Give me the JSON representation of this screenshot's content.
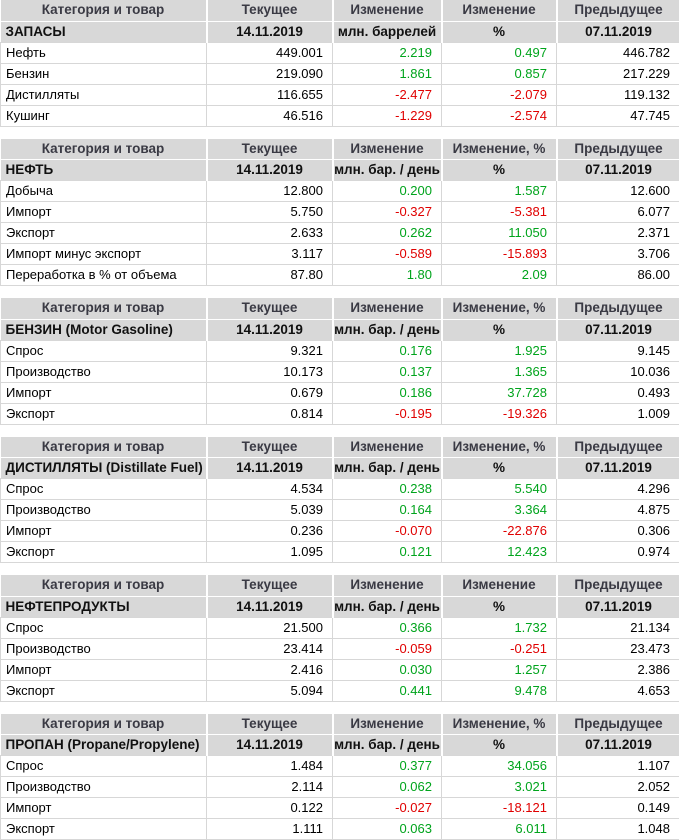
{
  "colors": {
    "positive": "#00a41c",
    "negative": "#e00000",
    "header_bg": "#d8d8d8",
    "header_text": "#3a3a44",
    "subheader_text": "#111111",
    "cell_border": "#d7d7d7",
    "body_text": "#000000",
    "page_bg": "#ffffff"
  },
  "dates": {
    "current": "14.11.2019",
    "previous": "07.11.2019"
  },
  "chart_data": [
    {
      "type": "table",
      "title": "ЗАПАСЫ",
      "unit": "млн. баррелей",
      "columns": [
        "Категория и товар",
        "Текущее",
        "Изменение",
        "Изменение",
        "Предыдущее"
      ],
      "subheader": [
        "ЗАПАСЫ",
        "14.11.2019",
        "млн. баррелей",
        "%",
        "07.11.2019"
      ],
      "rows": [
        [
          "Нефть",
          "449.001",
          "2.219",
          "0.497",
          "446.782"
        ],
        [
          "Бензин",
          "219.090",
          "1.861",
          "0.857",
          "217.229"
        ],
        [
          "Дистилляты",
          "116.655",
          "-2.477",
          "-2.079",
          "119.132"
        ],
        [
          "Кушинг",
          "46.516",
          "-1.229",
          "-2.574",
          "47.745"
        ]
      ]
    },
    {
      "type": "table",
      "title": "НЕФТЬ",
      "unit": "млн. бар. / день",
      "columns": [
        "Категория и товар",
        "Текущее",
        "Изменение",
        "Изменение, %",
        "Предыдущее"
      ],
      "subheader": [
        "НЕФТЬ",
        "14.11.2019",
        "млн. бар. / день",
        "%",
        "07.11.2019"
      ],
      "rows": [
        [
          "Добыча",
          "12.800",
          "0.200",
          "1.587",
          "12.600"
        ],
        [
          "Импорт",
          "5.750",
          "-0.327",
          "-5.381",
          "6.077"
        ],
        [
          "Экспорт",
          "2.633",
          "0.262",
          "11.050",
          "2.371"
        ],
        [
          "Импорт минус экспорт",
          "3.117",
          "-0.589",
          "-15.893",
          "3.706"
        ],
        [
          "Переработка в % от объема",
          "87.80",
          "1.80",
          "2.09",
          "86.00"
        ]
      ]
    },
    {
      "type": "table",
      "title": "БЕНЗИН (Motor Gasoline)",
      "unit": "млн. бар. / день",
      "columns": [
        "Категория и товар",
        "Текущее",
        "Изменение",
        "Изменение, %",
        "Предыдущее"
      ],
      "subheader": [
        "БЕНЗИН (Motor Gasoline)",
        "14.11.2019",
        "млн. бар. / день",
        "%",
        "07.11.2019"
      ],
      "rows": [
        [
          "Спрос",
          "9.321",
          "0.176",
          "1.925",
          "9.145"
        ],
        [
          "Производство",
          "10.173",
          "0.137",
          "1.365",
          "10.036"
        ],
        [
          "Импорт",
          "0.679",
          "0.186",
          "37.728",
          "0.493"
        ],
        [
          "Экспорт",
          "0.814",
          "-0.195",
          "-19.326",
          "1.009"
        ]
      ]
    },
    {
      "type": "table",
      "title": "ДИСТИЛЛЯТЫ (Distillate Fuel)",
      "unit": "млн. бар. / день",
      "columns": [
        "Категория и товар",
        "Текущее",
        "Изменение",
        "Изменение, %",
        "Предыдущее"
      ],
      "subheader": [
        "ДИСТИЛЛЯТЫ (Distillate Fuel)",
        "14.11.2019",
        "млн. бар. / день",
        "%",
        "07.11.2019"
      ],
      "rows": [
        [
          "Спрос",
          "4.534",
          "0.238",
          "5.540",
          "4.296"
        ],
        [
          "Производство",
          "5.039",
          "0.164",
          "3.364",
          "4.875"
        ],
        [
          "Импорт",
          "0.236",
          "-0.070",
          "-22.876",
          "0.306"
        ],
        [
          "Экспорт",
          "1.095",
          "0.121",
          "12.423",
          "0.974"
        ]
      ]
    },
    {
      "type": "table",
      "title": "НЕФТЕПРОДУКТЫ",
      "unit": "млн. бар. / день",
      "columns": [
        "Категория и товар",
        "Текущее",
        "Изменение",
        "Изменение",
        "Предыдущее"
      ],
      "subheader": [
        "НЕФТЕПРОДУКТЫ",
        "14.11.2019",
        "млн. бар. / день",
        "%",
        "07.11.2019"
      ],
      "rows": [
        [
          "Спрос",
          "21.500",
          "0.366",
          "1.732",
          "21.134"
        ],
        [
          "Производство",
          "23.414",
          "-0.059",
          "-0.251",
          "23.473"
        ],
        [
          "Импорт",
          "2.416",
          "0.030",
          "1.257",
          "2.386"
        ],
        [
          "Экспорт",
          "5.094",
          "0.441",
          "9.478",
          "4.653"
        ]
      ]
    },
    {
      "type": "table",
      "title": "ПРОПАН (Propane/Propylene)",
      "unit": "млн. бар. / день",
      "columns": [
        "Категория и товар",
        "Текущее",
        "Изменение",
        "Изменение, %",
        "Предыдущее"
      ],
      "subheader": [
        "ПРОПАН (Propane/Propylene)",
        "14.11.2019",
        "млн. бар. / день",
        "%",
        "07.11.2019"
      ],
      "rows": [
        [
          "Спрос",
          "1.484",
          "0.377",
          "34.056",
          "1.107"
        ],
        [
          "Производство",
          "2.114",
          "0.062",
          "3.021",
          "2.052"
        ],
        [
          "Импорт",
          "0.122",
          "-0.027",
          "-18.121",
          "0.149"
        ],
        [
          "Экспорт",
          "1.111",
          "0.063",
          "6.011",
          "1.048"
        ]
      ]
    }
  ]
}
